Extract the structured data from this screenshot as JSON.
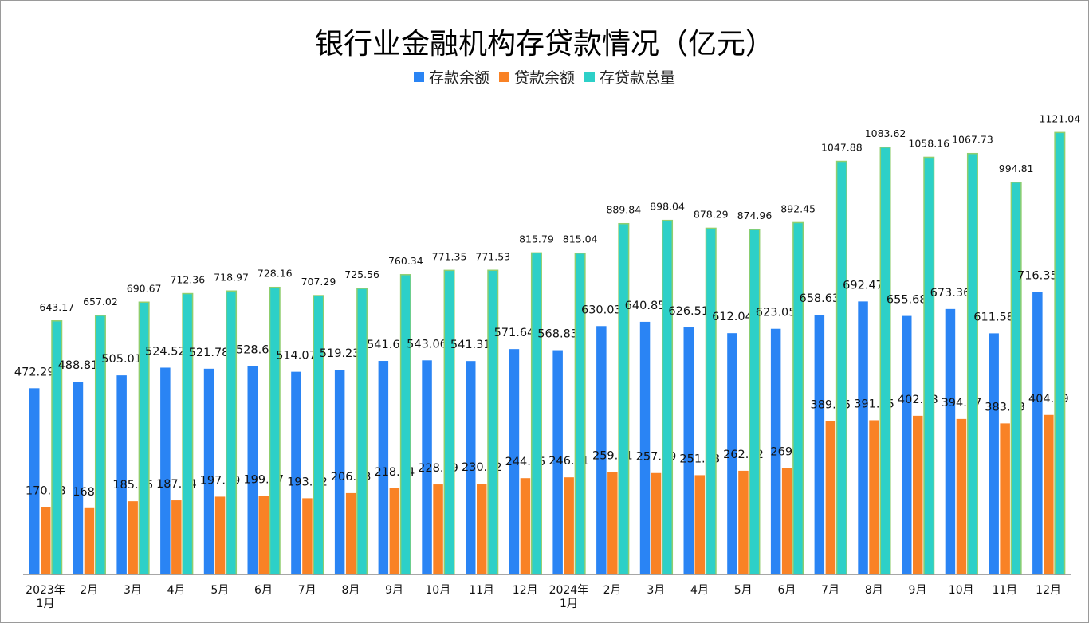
{
  "chart_data": {
    "type": "bar",
    "title": "银行业金融机构存贷款情况（亿元）",
    "categories": [
      [
        "2023年",
        "1月"
      ],
      [
        "2月"
      ],
      [
        "3月"
      ],
      [
        "4月"
      ],
      [
        "5月"
      ],
      [
        "6月"
      ],
      [
        "7月"
      ],
      [
        "8月"
      ],
      [
        "9月"
      ],
      [
        "10月"
      ],
      [
        "11月"
      ],
      [
        "12月"
      ],
      [
        "2024年",
        "1月"
      ],
      [
        "2月"
      ],
      [
        "3月"
      ],
      [
        "4月"
      ],
      [
        "5月"
      ],
      [
        "6月"
      ],
      [
        "7月"
      ],
      [
        "8月"
      ],
      [
        "9月"
      ],
      [
        "10月"
      ],
      [
        "11月"
      ],
      [
        "12月"
      ]
    ],
    "series": [
      {
        "name": "存款余额",
        "color": "#2a84f4",
        "values": [
          472.29,
          488.81,
          505.01,
          524.52,
          521.78,
          528.6,
          514.07,
          519.23,
          541.6,
          543.06,
          541.31,
          571.64,
          568.83,
          630.03,
          640.85,
          626.51,
          612.04,
          623.05,
          658.63,
          692.47,
          655.68,
          673.36,
          611.58,
          716.35
        ]
      },
      {
        "name": "贷款余额",
        "color": "#f98225",
        "values": [
          170.88,
          168.2,
          185.66,
          187.84,
          197.19,
          199.57,
          193.22,
          206.33,
          218.74,
          228.29,
          230.22,
          244.15,
          246.21,
          259.81,
          257.19,
          251.78,
          262.92,
          269.4,
          389.25,
          391.15,
          402.48,
          394.37,
          383.23,
          404.69
        ]
      },
      {
        "name": "存贷款总量",
        "color": "#2dd0c8",
        "values": [
          643.17,
          657.02,
          690.67,
          712.36,
          718.97,
          728.16,
          707.29,
          725.56,
          760.34,
          771.35,
          771.53,
          815.79,
          815.04,
          889.84,
          898.04,
          878.29,
          874.96,
          892.45,
          1047.88,
          1083.62,
          1058.16,
          1067.73,
          994.81,
          1121.04
        ]
      }
    ],
    "ylim": [
      0,
      1340
    ],
    "grid": false,
    "legend_position": "top-center",
    "data_labels": true
  }
}
